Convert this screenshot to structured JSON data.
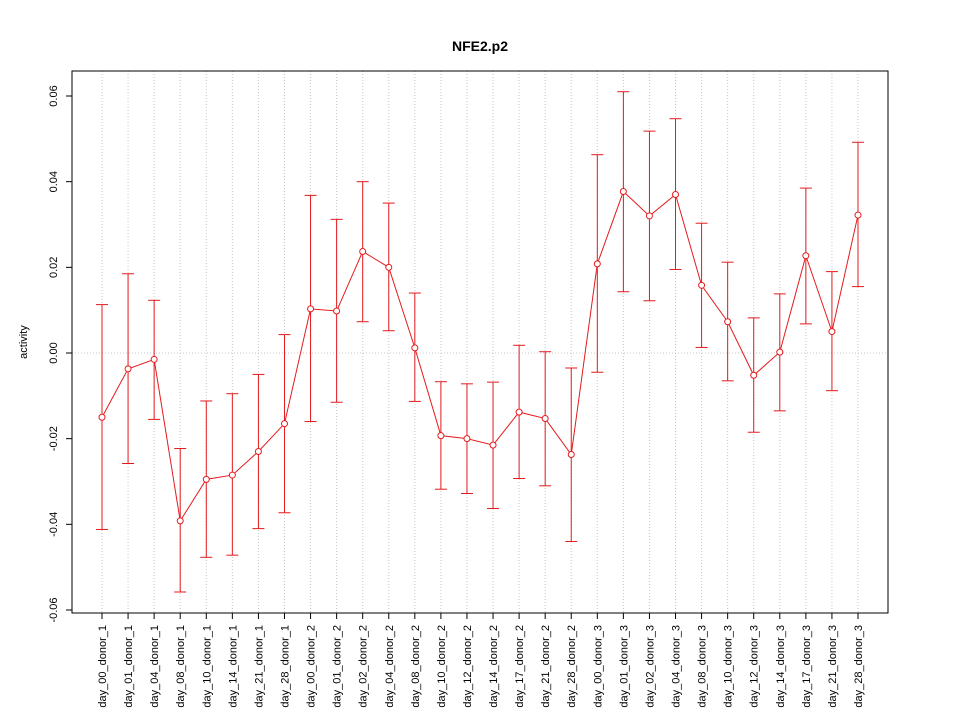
{
  "chart_data": {
    "type": "line",
    "title": "NFE2.p2",
    "xlabel": "",
    "ylabel": "activity",
    "ylim": [
      -0.06,
      0.06
    ],
    "yticks": [
      -0.06,
      -0.04,
      -0.02,
      0.0,
      0.02,
      0.04,
      0.06
    ],
    "ytick_labels": [
      "-0.06",
      "-0.04",
      "-0.02",
      "0.00",
      "0.02",
      "0.04",
      "0.06"
    ],
    "grid": true,
    "categories": [
      "day_00_donor_1",
      "day_01_donor_1",
      "day_04_donor_1",
      "day_08_donor_1",
      "day_10_donor_1",
      "day_14_donor_1",
      "day_21_donor_1",
      "day_28_donor_1",
      "day_00_donor_2",
      "day_01_donor_2",
      "day_02_donor_2",
      "day_04_donor_2",
      "day_08_donor_2",
      "day_10_donor_2",
      "day_12_donor_2",
      "day_14_donor_2",
      "day_17_donor_2",
      "day_21_donor_2",
      "day_28_donor_2",
      "day_00_donor_3",
      "day_01_donor_3",
      "day_02_donor_3",
      "day_04_donor_3",
      "day_08_donor_3",
      "day_10_donor_3",
      "day_12_donor_3",
      "day_14_donor_3",
      "day_17_donor_3",
      "day_21_donor_3",
      "day_28_donor_3"
    ],
    "series": [
      {
        "color": "#e41a1c",
        "values": [
          -0.015,
          -0.0037,
          -0.0015,
          -0.0392,
          -0.0295,
          -0.0285,
          -0.023,
          -0.0165,
          0.0103,
          0.0098,
          0.0237,
          0.02,
          0.0012,
          -0.0193,
          -0.02,
          -0.0215,
          -0.0138,
          -0.0153,
          -0.0237,
          0.0208,
          0.0377,
          0.032,
          0.037,
          0.0158,
          0.0073,
          -0.0052,
          0.0002,
          0.0227,
          0.005,
          0.0322
        ],
        "lower": [
          -0.0412,
          -0.0258,
          -0.0155,
          -0.0558,
          -0.0477,
          -0.0472,
          -0.041,
          -0.0373,
          -0.016,
          -0.0115,
          0.0073,
          0.0052,
          -0.0113,
          -0.0318,
          -0.0328,
          -0.0363,
          -0.0293,
          -0.031,
          -0.044,
          -0.0045,
          0.0143,
          0.0122,
          0.0195,
          0.0013,
          -0.0065,
          -0.0185,
          -0.0135,
          0.0068,
          -0.0088,
          0.0155
        ],
        "upper": [
          0.0113,
          0.0185,
          0.0123,
          -0.0223,
          -0.0112,
          -0.0095,
          -0.005,
          0.0043,
          0.0368,
          0.0312,
          0.04,
          0.035,
          0.014,
          -0.0067,
          -0.0072,
          -0.0068,
          0.0018,
          0.0003,
          -0.0035,
          0.0463,
          0.061,
          0.0518,
          0.0547,
          0.0303,
          0.0212,
          0.0082,
          0.0138,
          0.0385,
          0.019,
          0.0492
        ]
      }
    ]
  }
}
